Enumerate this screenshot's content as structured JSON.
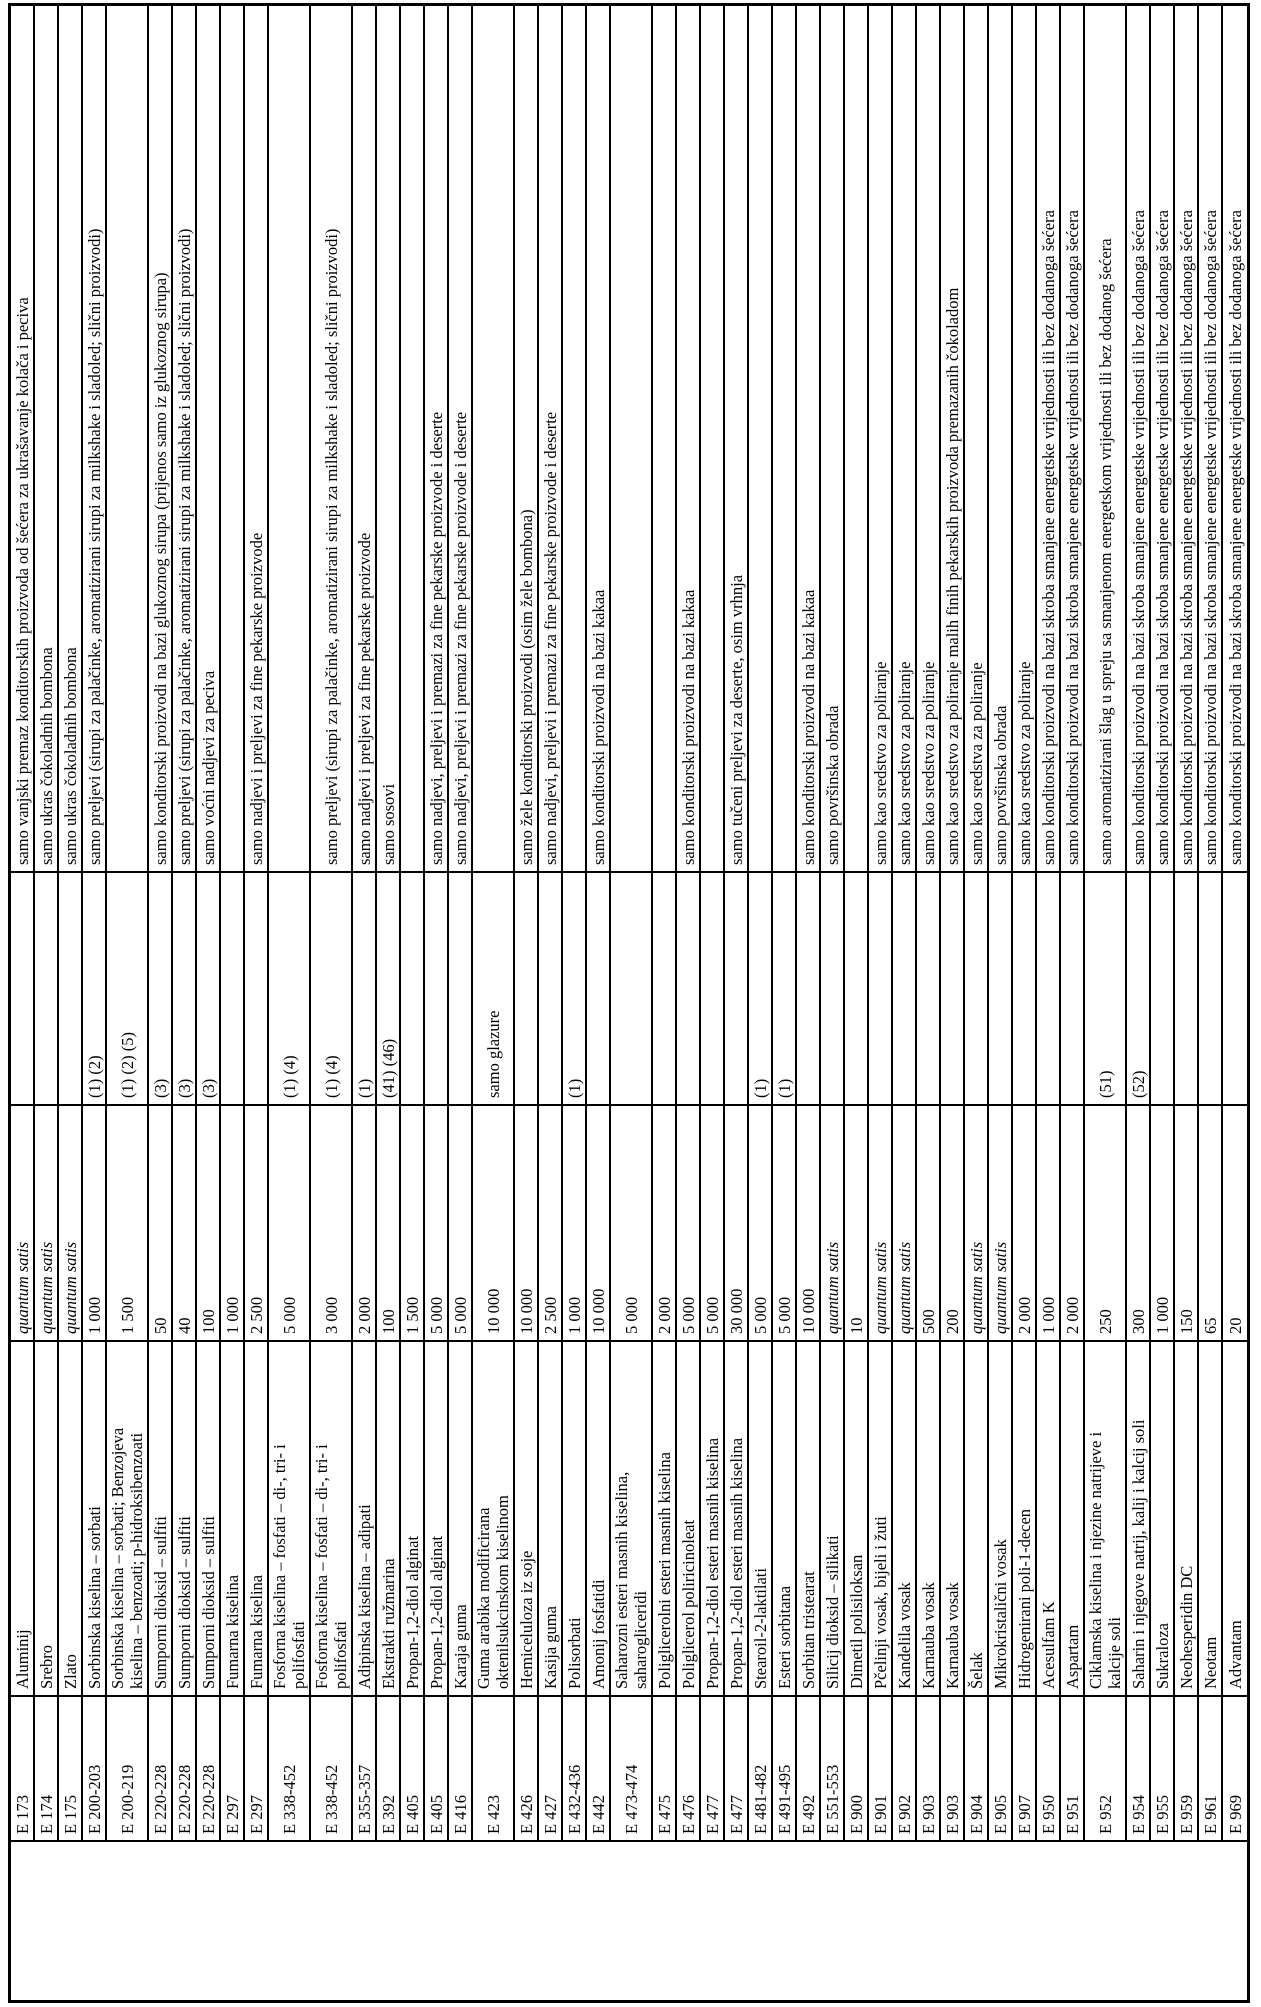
{
  "document": {
    "language": "hr",
    "orientation": "rotated-90deg-ccw",
    "table": {
      "columns": [
        "category",
        "e_number",
        "name",
        "max_level",
        "footnotes",
        "restrictions"
      ],
      "quantum_satis_label": "quantum satis",
      "rows": [
        {
          "e": "E 173",
          "name": "Aluminij",
          "max": "quantum satis",
          "foot": "",
          "restr": "samo vanjski premaz konditorskih proizvoda od šećera za ukrašavanje kolača i peciva"
        },
        {
          "e": "E 174",
          "name": "Srebro",
          "max": "quantum satis",
          "foot": "",
          "restr": "samo ukras čokoladnih bombona"
        },
        {
          "e": "E 175",
          "name": "Zlato",
          "max": "quantum satis",
          "foot": "",
          "restr": "samo ukras čokoladnih bombona"
        },
        {
          "e": "E 200-203",
          "name": "Sorbinska kiselina – sorbati",
          "max": "1 000",
          "foot": "(1) (2)",
          "restr": "samo preljevi (sirupi za palačinke, aromatizirani sirupi za milkshake i sladoled; slični proizvodi)"
        },
        {
          "e": "E 200-219",
          "name": "Sorbinska kiselina – sorbati; Benzojeva\nkiselina – benzoati; p-hidroksibenzoati",
          "max": "1 500",
          "foot": "(1) (2) (5)",
          "restr": ""
        },
        {
          "e": "E 220-228",
          "name": "Sumporni dioksid – sulfiti",
          "max": "50",
          "foot": "(3)",
          "restr": "samo konditorski proizvodi na bazi glukoznog sirupa (prijenos samo iz glukoznog sirupa)"
        },
        {
          "e": "E 220-228",
          "name": "Sumporni dioksid – sulfiti",
          "max": "40",
          "foot": "(3)",
          "restr": "samo preljevi (sirupi za palačinke, aromatizirani sirupi za milkshake i sladoled; slični proizvodi)"
        },
        {
          "e": "E 220-228",
          "name": "Sumporni dioksid – sulfiti",
          "max": "100",
          "foot": "(3)",
          "restr": "samo voćni nadjevi za peciva"
        },
        {
          "e": "E 297",
          "name": "Fumarna kiselina",
          "max": "1 000",
          "foot": "",
          "restr": ""
        },
        {
          "e": "E 297",
          "name": "Fumarna kiselina",
          "max": "2 500",
          "foot": "",
          "restr": "samo nadjevi i preljevi za fine pekarske proizvode"
        },
        {
          "e": "E 338-452",
          "name": "Fosforna kiselina – fosfati – di-, tri- i\npolifosfati",
          "max": "5 000",
          "foot": "(1) (4)",
          "restr": ""
        },
        {
          "e": "E 338-452",
          "name": "Fosforna kiselina – fosfati – di-, tri- i\npolifosfati",
          "max": "3 000",
          "foot": "(1) (4)",
          "restr": "samo preljevi (sirupi za palačinke, aromatizirani sirupi za milkshake i sladoled; slični proizvodi)"
        },
        {
          "e": "E 355-357",
          "name": "Adipinska kiselina – adipati",
          "max": "2 000",
          "foot": "(1)",
          "restr": "samo nadjevi i preljevi za fine pekarske proizvode"
        },
        {
          "e": "E 392",
          "name": "Ekstrakti ružmarina",
          "max": "100",
          "foot": "(41) (46)",
          "restr": "samo sosovi"
        },
        {
          "e": "E 405",
          "name": "Propan-1,2-diol alginat",
          "max": "1 500",
          "foot": "",
          "restr": ""
        },
        {
          "e": "E 405",
          "name": "Propan-1,2-diol alginat",
          "max": "5 000",
          "foot": "",
          "restr": "samo nadjevi, preljevi i premazi za fine pekarske proizvode i deserte"
        },
        {
          "e": "E 416",
          "name": "Karaja guma",
          "max": "5 000",
          "foot": "",
          "restr": "samo nadjevi, preljevi i premazi za fine pekarske proizvode i deserte"
        },
        {
          "e": "E 423",
          "name": "Guma arabika modificirana\noktenilsukcinskom kiselinom",
          "max": "10 000",
          "foot": "samo glazure",
          "restr": ""
        },
        {
          "e": "E 426",
          "name": "Hemiceluloza iz soje",
          "max": "10 000",
          "foot": "",
          "restr": "samo žele konditorski proizvodi (osim žele bombona)"
        },
        {
          "e": "E 427",
          "name": "Kasija guma",
          "max": "2 500",
          "foot": "",
          "restr": "samo nadjevi, preljevi i premazi za fine pekarske proizvode i deserte"
        },
        {
          "e": "E 432-436",
          "name": "Polisorbati",
          "max": "1 000",
          "foot": "(1)",
          "restr": ""
        },
        {
          "e": "E 442",
          "name": "Amonij fosfatidi",
          "max": "10 000",
          "foot": "",
          "restr": "samo konditorski proizvodi na bazi kakaa"
        },
        {
          "e": "E 473-474",
          "name": "Saharozni esteri masnih kiselina,\nsaharogliceridi",
          "max": "5 000",
          "foot": "",
          "restr": ""
        },
        {
          "e": "E 475",
          "name": "Poliglicerolni esteri masnih kiselina",
          "max": "2 000",
          "foot": "",
          "restr": ""
        },
        {
          "e": "E 476",
          "name": "Poliglicerol poliricinoleat",
          "max": "5 000",
          "foot": "",
          "restr": "samo konditorski proizvodi na bazi kakaa"
        },
        {
          "e": "E 477",
          "name": "Propan-1,2-diol esteri masnih kiselina",
          "max": "5 000",
          "foot": "",
          "restr": ""
        },
        {
          "e": "E 477",
          "name": "Propan-1,2-diol esteri masnih kiselina",
          "max": "30 000",
          "foot": "",
          "restr": "samo tučeni preljevi za deserte, osim vrhnja"
        },
        {
          "e": "E 481-482",
          "name": "Stearoil-2-laktilati",
          "max": "5 000",
          "foot": "(1)",
          "restr": ""
        },
        {
          "e": "E 491-495",
          "name": "Esteri sorbitana",
          "max": "5 000",
          "foot": "(1)",
          "restr": ""
        },
        {
          "e": "E 492",
          "name": "Sorbitan tristearat",
          "max": "10 000",
          "foot": "",
          "restr": "samo konditorski proizvodi na bazi kakaa"
        },
        {
          "e": "E 551-553",
          "name": "Silicij dioksid – silikati",
          "max": "quantum satis",
          "foot": "",
          "restr": "samo površinska obrada"
        },
        {
          "e": "E 900",
          "name": "Dimetil polisiloksan",
          "max": "10",
          "foot": "",
          "restr": ""
        },
        {
          "e": "E 901",
          "name": "Pčelinji vosak, bijeli i žuti",
          "max": "quantum satis",
          "foot": "",
          "restr": "samo kao sredstvo za poliranje"
        },
        {
          "e": "E 902",
          "name": "Kandelila vosak",
          "max": "quantum satis",
          "foot": "",
          "restr": "samo kao sredstvo za poliranje"
        },
        {
          "e": "E 903",
          "name": "Karnauba vosak",
          "max": "500",
          "foot": "",
          "restr": "samo kao sredstvo za poliranje"
        },
        {
          "e": "E 903",
          "name": "Karnauba vosak",
          "max": "200",
          "foot": "",
          "restr": "samo kao sredstvo za poliranje malih finih pekarskih proizvoda premazanih čokoladom"
        },
        {
          "e": "E 904",
          "name": "Šelak",
          "max": "quantum satis",
          "foot": "",
          "restr": "samo kao sredstva za poliranje"
        },
        {
          "e": "E 905",
          "name": "Mikrokristalični vosak",
          "max": "quantum satis",
          "foot": "",
          "restr": "samo površinska obrada"
        },
        {
          "e": "E 907",
          "name": "Hidrogenirani poli-1-decen",
          "max": "2 000",
          "foot": "",
          "restr": "samo kao sredstvo za poliranje"
        },
        {
          "e": "E 950",
          "name": "Acesulfam K",
          "max": "1 000",
          "foot": "",
          "restr": "samo konditorski proizvodi na bazi skroba smanjene energetske vrijednosti ili bez dodanoga šećera"
        },
        {
          "e": "E 951",
          "name": "Aspartam",
          "max": "2 000",
          "foot": "",
          "restr": "samo konditorski proizvodi na bazi skroba smanjene energetske vrijednosti ili bez dodanoga šećera"
        },
        {
          "e": "E 952",
          "name": "Ciklamska kiselina i njezine natrijeve i\nkalcije soli",
          "max": "250",
          "foot": "(51)",
          "restr": "samo aromatizirani šlag u spreju sa smanjenom energetskom vrijednosti ili bez dodanog šećera"
        },
        {
          "e": "E 954",
          "name": "Saharin i njegove natrij, kalij i kalcij soli",
          "max": "300",
          "foot": "(52)",
          "restr": "samo konditorski proizvodi na bazi skroba smanjene energetske vrijednosti ili bez dodanoga šećera"
        },
        {
          "e": "E 955",
          "name": "Sukraloza",
          "max": "1 000",
          "foot": "",
          "restr": "samo konditorski proizvodi na bazi skroba smanjene energetske vrijednosti ili bez dodanoga šećera"
        },
        {
          "e": "E 959",
          "name": "Neohesperidin DC",
          "max": "150",
          "foot": "",
          "restr": "samo konditorski proizvodi na bazi skroba smanjene energetske vrijednosti ili bez dodanoga šećera"
        },
        {
          "e": "E 961",
          "name": "Neotam",
          "max": "65",
          "foot": "",
          "restr": "samo konditorski proizvodi na bazi skroba smanjene energetske vrijednosti ili bez dodanoga šećera"
        },
        {
          "e": "E 969",
          "name": "Advantam",
          "max": "20",
          "foot": "",
          "restr": "samo konditorski proizvodi na bazi skroba smanjene energetske vrijednosti ili bez dodanoga šećera"
        }
      ]
    }
  }
}
